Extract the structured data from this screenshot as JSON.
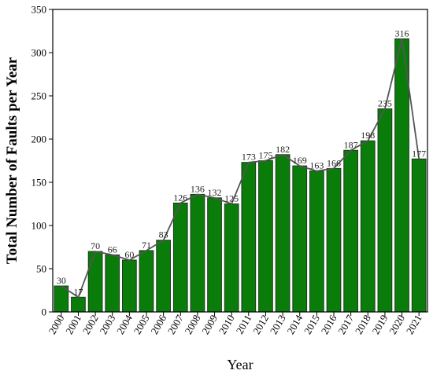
{
  "chart_data": {
    "type": "bar",
    "overlay": "line",
    "title": "",
    "xlabel": "Year",
    "ylabel": "Total Number of Faults per Year",
    "categories": [
      "2000",
      "2001",
      "2002",
      "2003",
      "2004",
      "2005",
      "2006",
      "2007",
      "2008",
      "2009",
      "2010",
      "2011",
      "2012",
      "2013",
      "2014",
      "2015",
      "2016",
      "2017",
      "2018",
      "2019",
      "2020",
      "2021"
    ],
    "values": [
      30,
      17,
      70,
      66,
      60,
      71,
      83,
      126,
      136,
      132,
      125,
      173,
      175,
      182,
      169,
      163,
      166,
      187,
      198,
      235,
      316,
      177
    ],
    "ylim": [
      0,
      350
    ],
    "yticks": [
      0,
      50,
      100,
      150,
      200,
      250,
      300,
      350
    ],
    "grid": false,
    "legend": "none",
    "colors": {
      "bar_fill": "#0a7c0a",
      "bar_stroke": "#1e3a1e",
      "line": "#555555"
    }
  }
}
